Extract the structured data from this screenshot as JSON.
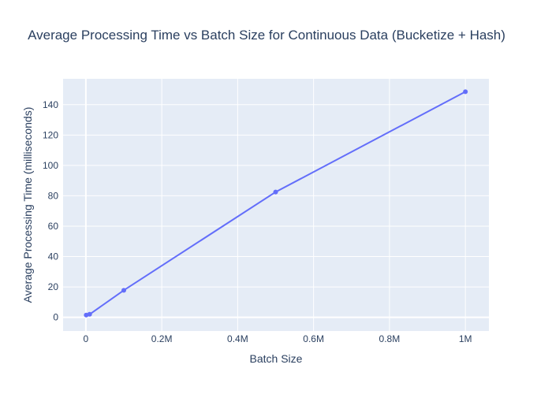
{
  "chart_data": {
    "type": "line",
    "title": "Average Processing Time vs Batch Size for Continuous Data (Bucketize + Hash)",
    "xlabel": "Batch Size",
    "ylabel": "Average Processing Time (milliseconds)",
    "xlim": [
      -60000,
      1062000
    ],
    "ylim": [
      -9,
      157
    ],
    "x_ticks": [
      0,
      200000,
      400000,
      600000,
      800000,
      1000000
    ],
    "x_tick_labels": [
      "0",
      "0.2M",
      "0.4M",
      "0.6M",
      "0.8M",
      "1M"
    ],
    "y_ticks": [
      0,
      20,
      40,
      60,
      80,
      100,
      120,
      140
    ],
    "y_tick_labels": [
      "0",
      "20",
      "40",
      "60",
      "80",
      "100",
      "120",
      "140"
    ],
    "grid": true,
    "series": [
      {
        "x": [
          1000,
          10000,
          100000,
          500000,
          1000000
        ],
        "y": [
          1.5,
          2.0,
          17.8,
          82.5,
          148.5
        ]
      }
    ],
    "colors": {
      "plot_bg": "#e5ecf6",
      "grid": "#ffffff",
      "line": "#636efa",
      "text": "#2a3f5f"
    }
  }
}
